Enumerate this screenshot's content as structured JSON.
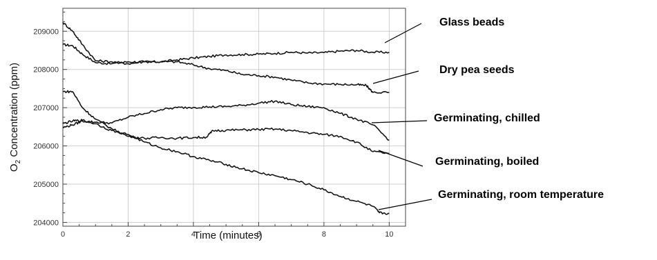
{
  "chart_data": {
    "type": "line",
    "title": "",
    "xlabel": "Time (minutes)",
    "ylabel_main": "O",
    "ylabel_sub": "2",
    "ylabel_rest": " Concentration (ppm)",
    "xlim": [
      0,
      10.5
    ],
    "ylim": [
      203900,
      209600
    ],
    "xticks": [
      0,
      2,
      4,
      6,
      8,
      10
    ],
    "yticks": [
      204000,
      205000,
      206000,
      207000,
      208000,
      209000
    ],
    "grid": true,
    "legend": "labels-right-with-leaders",
    "series": [
      {
        "name": "Glass beads",
        "points": [
          [
            0,
            208650
          ],
          [
            0.3,
            208620
          ],
          [
            0.6,
            208400
          ],
          [
            1.0,
            208180
          ],
          [
            1.5,
            208150
          ],
          [
            2.0,
            208200
          ],
          [
            2.5,
            208200
          ],
          [
            3.0,
            208200
          ],
          [
            3.5,
            208250
          ],
          [
            4.0,
            208300
          ],
          [
            4.5,
            208340
          ],
          [
            5.0,
            208380
          ],
          [
            5.5,
            208390
          ],
          [
            6.0,
            208400
          ],
          [
            6.5,
            208420
          ],
          [
            7.0,
            208450
          ],
          [
            7.5,
            208430
          ],
          [
            8.0,
            208440
          ],
          [
            8.5,
            208480
          ],
          [
            9.0,
            208500
          ],
          [
            9.5,
            208450
          ],
          [
            10.0,
            208450
          ]
        ]
      },
      {
        "name": "Dry pea seeds",
        "points": [
          [
            0,
            209230
          ],
          [
            0.3,
            209000
          ],
          [
            0.6,
            208650
          ],
          [
            1.0,
            208230
          ],
          [
            1.5,
            208200
          ],
          [
            2.0,
            208150
          ],
          [
            2.5,
            208200
          ],
          [
            3.0,
            208200
          ],
          [
            3.5,
            208200
          ],
          [
            4.0,
            208120
          ],
          [
            4.5,
            208020
          ],
          [
            5.0,
            207970
          ],
          [
            5.5,
            207870
          ],
          [
            6.0,
            207840
          ],
          [
            6.5,
            207800
          ],
          [
            7.0,
            207720
          ],
          [
            7.5,
            207650
          ],
          [
            8.0,
            207620
          ],
          [
            8.5,
            207610
          ],
          [
            9.0,
            207600
          ],
          [
            9.3,
            207580
          ],
          [
            9.5,
            207400
          ],
          [
            10.0,
            207400
          ]
        ]
      },
      {
        "name": "Germinating, chilled",
        "points": [
          [
            0,
            206480
          ],
          [
            0.3,
            206550
          ],
          [
            0.6,
            206650
          ],
          [
            1.0,
            206620
          ],
          [
            1.5,
            206600
          ],
          [
            2.0,
            206750
          ],
          [
            2.5,
            206850
          ],
          [
            3.0,
            206950
          ],
          [
            3.5,
            207000
          ],
          [
            4.0,
            207010
          ],
          [
            4.5,
            207020
          ],
          [
            5.0,
            207030
          ],
          [
            5.5,
            207060
          ],
          [
            6.0,
            207120
          ],
          [
            6.5,
            207170
          ],
          [
            7.0,
            207080
          ],
          [
            7.5,
            207030
          ],
          [
            8.0,
            207000
          ],
          [
            8.5,
            206850
          ],
          [
            9.0,
            206700
          ],
          [
            9.5,
            206550
          ],
          [
            10.0,
            206150
          ]
        ]
      },
      {
        "name": "Germinating, boiled",
        "points": [
          [
            0,
            207420
          ],
          [
            0.3,
            207420
          ],
          [
            0.6,
            207000
          ],
          [
            1.0,
            206700
          ],
          [
            1.5,
            206450
          ],
          [
            2.0,
            206250
          ],
          [
            2.5,
            206200
          ],
          [
            3.0,
            206220
          ],
          [
            3.5,
            206200
          ],
          [
            4.0,
            206220
          ],
          [
            4.4,
            206230
          ],
          [
            4.6,
            206400
          ],
          [
            5.0,
            206410
          ],
          [
            5.5,
            206420
          ],
          [
            6.0,
            206430
          ],
          [
            6.5,
            206440
          ],
          [
            7.0,
            206400
          ],
          [
            7.5,
            206350
          ],
          [
            8.0,
            206300
          ],
          [
            8.5,
            206250
          ],
          [
            9.0,
            206100
          ],
          [
            9.5,
            205850
          ],
          [
            10.0,
            205800
          ]
        ]
      },
      {
        "name": "Germinating, room temperature",
        "points": [
          [
            0,
            206580
          ],
          [
            0.3,
            206650
          ],
          [
            0.6,
            206670
          ],
          [
            1.0,
            206580
          ],
          [
            1.5,
            206400
          ],
          [
            2.0,
            206300
          ],
          [
            2.5,
            206100
          ],
          [
            3.0,
            205950
          ],
          [
            3.5,
            205850
          ],
          [
            4.0,
            205720
          ],
          [
            4.5,
            205620
          ],
          [
            5.0,
            205520
          ],
          [
            5.5,
            205400
          ],
          [
            6.0,
            205300
          ],
          [
            6.5,
            205220
          ],
          [
            7.0,
            205120
          ],
          [
            7.5,
            205000
          ],
          [
            8.0,
            204850
          ],
          [
            8.5,
            204680
          ],
          [
            9.0,
            204550
          ],
          [
            9.5,
            204420
          ],
          [
            9.7,
            204250
          ],
          [
            10.0,
            204230
          ]
        ]
      }
    ],
    "labels": [
      "Glass beads",
      "Dry pea seeds",
      "Germinating, chilled",
      "Germinating, boiled",
      "Germinating, room temperature"
    ]
  }
}
